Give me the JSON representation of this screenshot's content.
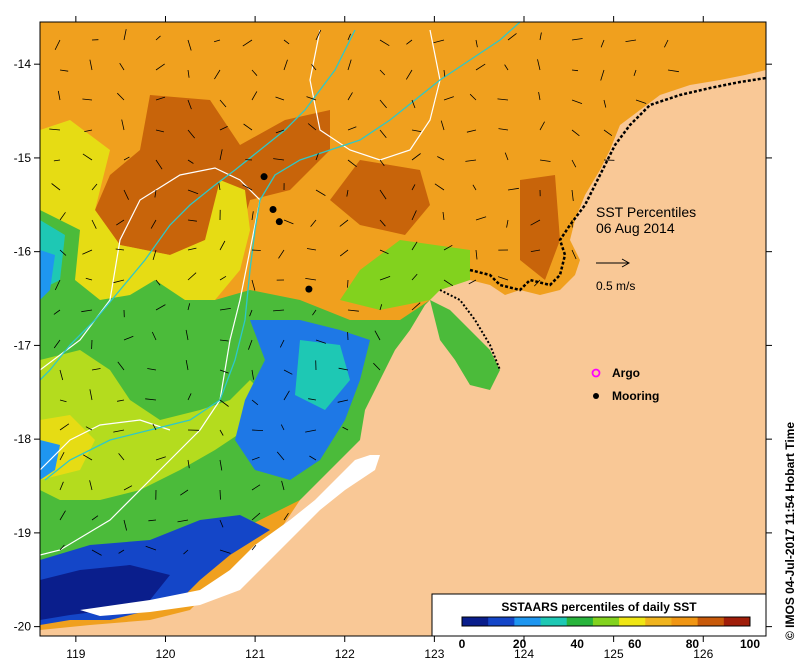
{
  "map": {
    "title": "SST Percentiles",
    "date": "06 Aug 2014",
    "velocity_scale_label": "0.5 m/s",
    "x_ticks": [
      "119",
      "120",
      "121",
      "122",
      "123",
      "124",
      "125",
      "126"
    ],
    "y_ticks": [
      "-14",
      "-15",
      "-16",
      "-17",
      "-18",
      "-19",
      "-20"
    ],
    "lon_range": [
      118.6,
      126.7
    ],
    "lat_range": [
      -20.1,
      -13.55
    ]
  },
  "legend": {
    "argo_label": "Argo",
    "mooring_label": "Mooring",
    "argo_color": "#ff00ff",
    "mooring_color": "#000000"
  },
  "colorbar": {
    "title": "SSTAARS percentiles of daily SST",
    "tick_labels": [
      "0",
      "20",
      "40",
      "60",
      "80",
      "100"
    ],
    "colors": [
      "#0a1e8c",
      "#1446c8",
      "#1e96f0",
      "#1ec8b4",
      "#28b43c",
      "#82d21e",
      "#f0e614",
      "#f0b41e",
      "#f09614",
      "#c85a0a",
      "#a01e0a"
    ]
  },
  "moorings": [
    {
      "lon": 121.1,
      "lat": -15.2
    },
    {
      "lon": 121.2,
      "lat": -15.55
    },
    {
      "lon": 121.27,
      "lat": -15.68
    },
    {
      "lon": 121.6,
      "lat": -16.4
    }
  ],
  "credit": "© IMOS 04-Jul-2017 11:54 Hobart Time",
  "colors": {
    "land": "#f9c896",
    "ocean_base": "#f0a01e",
    "warm_dark": "#c8640a",
    "cool_green": "#4bbb3a",
    "cool_blue": "#1e78e6",
    "deep_blue": "#0a2890",
    "contour": "#ffffff",
    "track": "#2ec8c8"
  }
}
